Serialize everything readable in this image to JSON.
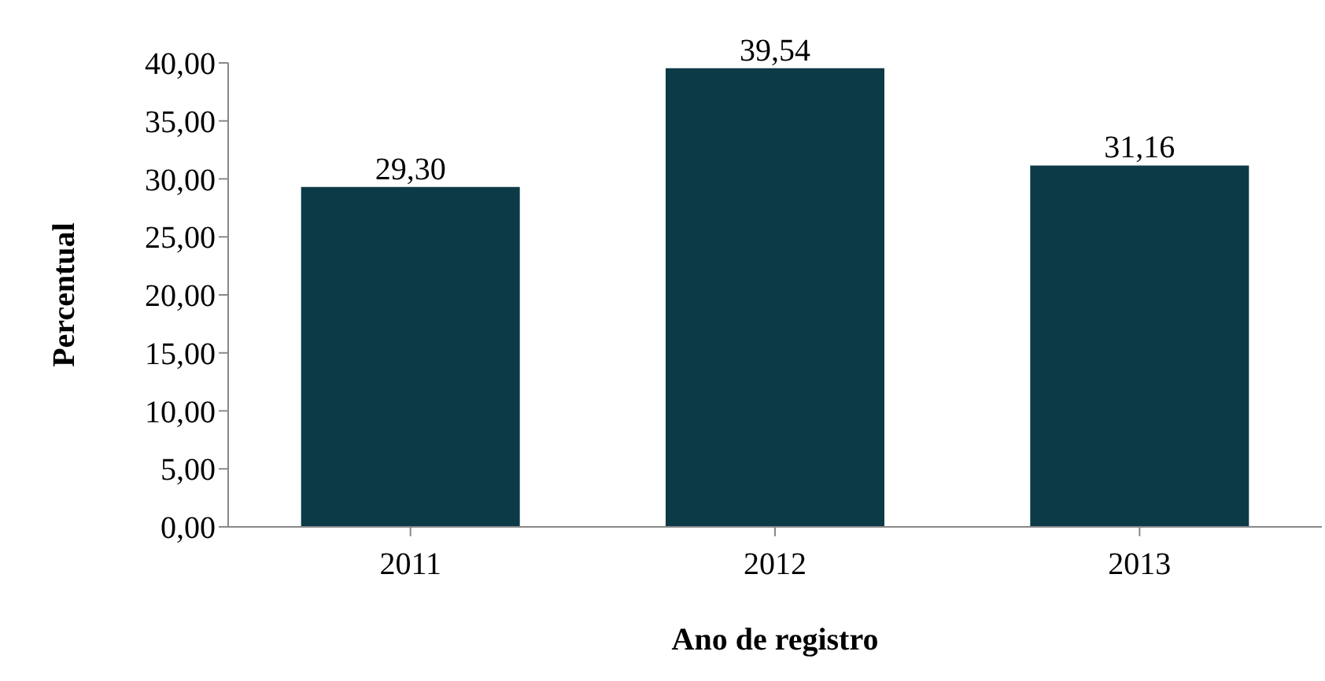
{
  "chart_data": {
    "type": "bar",
    "xlabel": "Ano de registro",
    "ylabel": "Percentual",
    "categories": [
      "2011",
      "2012",
      "2013"
    ],
    "values": [
      29.3,
      39.54,
      31.16
    ],
    "value_labels": [
      "29,30",
      "39,54",
      "31,16"
    ],
    "color": "#0d3a47",
    "ylim": [
      0,
      40
    ],
    "yticks": [
      {
        "value": 0,
        "label": "0,00"
      },
      {
        "value": 5,
        "label": "5,00"
      },
      {
        "value": 10,
        "label": "10,00"
      },
      {
        "value": 15,
        "label": "15,00"
      },
      {
        "value": 20,
        "label": "20,00"
      },
      {
        "value": 25,
        "label": "25,00"
      },
      {
        "value": 30,
        "label": "30,00"
      },
      {
        "value": 35,
        "label": "35,00"
      },
      {
        "value": 40,
        "label": "40,00"
      }
    ],
    "grid": false,
    "legend": false
  }
}
